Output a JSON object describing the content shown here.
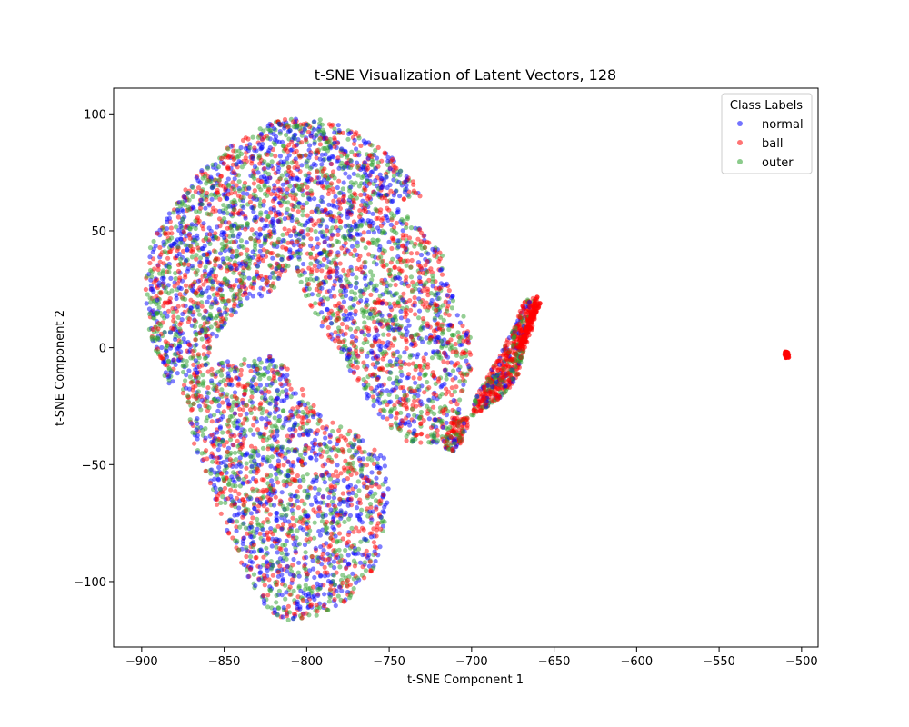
{
  "chart_data": {
    "type": "scatter",
    "title": "t-SNE Visualization of Latent Vectors, 128",
    "xlabel": "t-SNE Component 1",
    "ylabel": "t-SNE Component 2",
    "xlim": [
      -917,
      -490
    ],
    "ylim": [
      -128,
      111
    ],
    "xticks": [
      -900,
      -850,
      -800,
      -750,
      -700,
      -650,
      -600,
      -550,
      -500
    ],
    "yticks": [
      -100,
      -50,
      0,
      50,
      100
    ],
    "xtick_labels": [
      "−900",
      "−850",
      "−800",
      "−750",
      "−700",
      "−650",
      "−600",
      "−550",
      "−500"
    ],
    "ytick_labels": [
      "−100",
      "−50",
      "0",
      "50",
      "100"
    ],
    "grid": false,
    "legend": {
      "title": "Class Labels",
      "placement": "top-right"
    },
    "series": [
      {
        "name": "normal",
        "color": "#0000ff",
        "alpha": 0.5
      },
      {
        "name": "ball",
        "color": "#ff0000",
        "alpha": 0.5
      },
      {
        "name": "outer",
        "color": "#2ca02c",
        "alpha": 0.5
      }
    ],
    "clusters": {
      "left_upper_arc": {
        "center": [
          -820,
          55
        ],
        "x_range": [
          -898,
          -720
        ],
        "y_range": [
          -15,
          100
        ],
        "classes": [
          "normal",
          "ball",
          "outer"
        ]
      },
      "left_lower_arc": {
        "center": [
          -800,
          -60
        ],
        "x_range": [
          -880,
          -750
        ],
        "y_range": [
          -118,
          10
        ],
        "classes": [
          "normal",
          "ball",
          "outer"
        ]
      },
      "middle_band": {
        "center": [
          -730,
          0
        ],
        "x_range": [
          -790,
          -690
        ],
        "y_range": [
          -45,
          70
        ],
        "classes": [
          "normal",
          "ball",
          "outer"
        ]
      },
      "right_hook": {
        "center": [
          -680,
          -10
        ],
        "x_range": [
          -705,
          -658
        ],
        "y_range": [
          -45,
          22
        ],
        "classes": [
          "ball",
          "outer",
          "normal"
        ]
      },
      "isolated_cluster": {
        "center": [
          -509,
          -3
        ],
        "x_range": [
          -511,
          -507
        ],
        "y_range": [
          -4,
          -2
        ],
        "classes": [
          "ball"
        ]
      }
    }
  }
}
